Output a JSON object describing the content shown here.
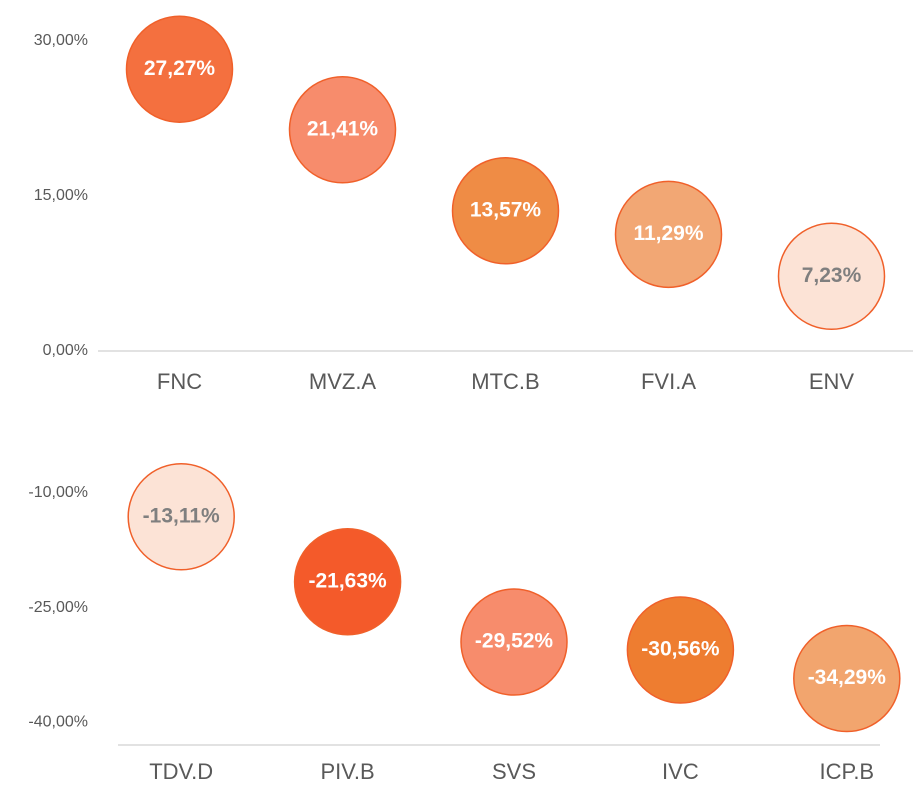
{
  "chart_data": [
    {
      "type": "bubble",
      "categories": [
        "FNC",
        "MVZ.A",
        "MTC.B",
        "FVI.A",
        "ENV"
      ],
      "values": [
        27.27,
        21.41,
        13.57,
        11.29,
        7.23
      ],
      "value_labels": [
        "27,27%",
        "21,41%",
        "13,57%",
        "11,29%",
        "7,23%"
      ],
      "colors": [
        "#f4703f",
        "#f78c6c",
        "#ef8c45",
        "#f2a774",
        "#fce3d6"
      ],
      "ylim": [
        0,
        30
      ],
      "yticks": [
        {
          "value": 0,
          "label": "0,00%"
        },
        {
          "value": 15,
          "label": "15,00%"
        },
        {
          "value": 30,
          "label": "30,00%"
        }
      ]
    },
    {
      "type": "bubble",
      "categories": [
        "TDV.D",
        "PIV.B",
        "SVS",
        "IVC",
        "ICP.B"
      ],
      "values": [
        -13.11,
        -21.63,
        -29.52,
        -30.56,
        -34.29
      ],
      "value_labels": [
        "-13,11%",
        "-21,63%",
        "-29,52%",
        "-30,56%",
        "-34,29%"
      ],
      "colors": [
        "#fce3d6",
        "#f45a2a",
        "#f78c6c",
        "#ee7d30",
        "#f2a56e"
      ],
      "ylim": [
        -43,
        -10
      ],
      "yticks": [
        {
          "value": -10,
          "label": "-10,00%"
        },
        {
          "value": -25,
          "label": "-25,00%"
        },
        {
          "value": -40,
          "label": "-40,00%"
        }
      ]
    }
  ]
}
